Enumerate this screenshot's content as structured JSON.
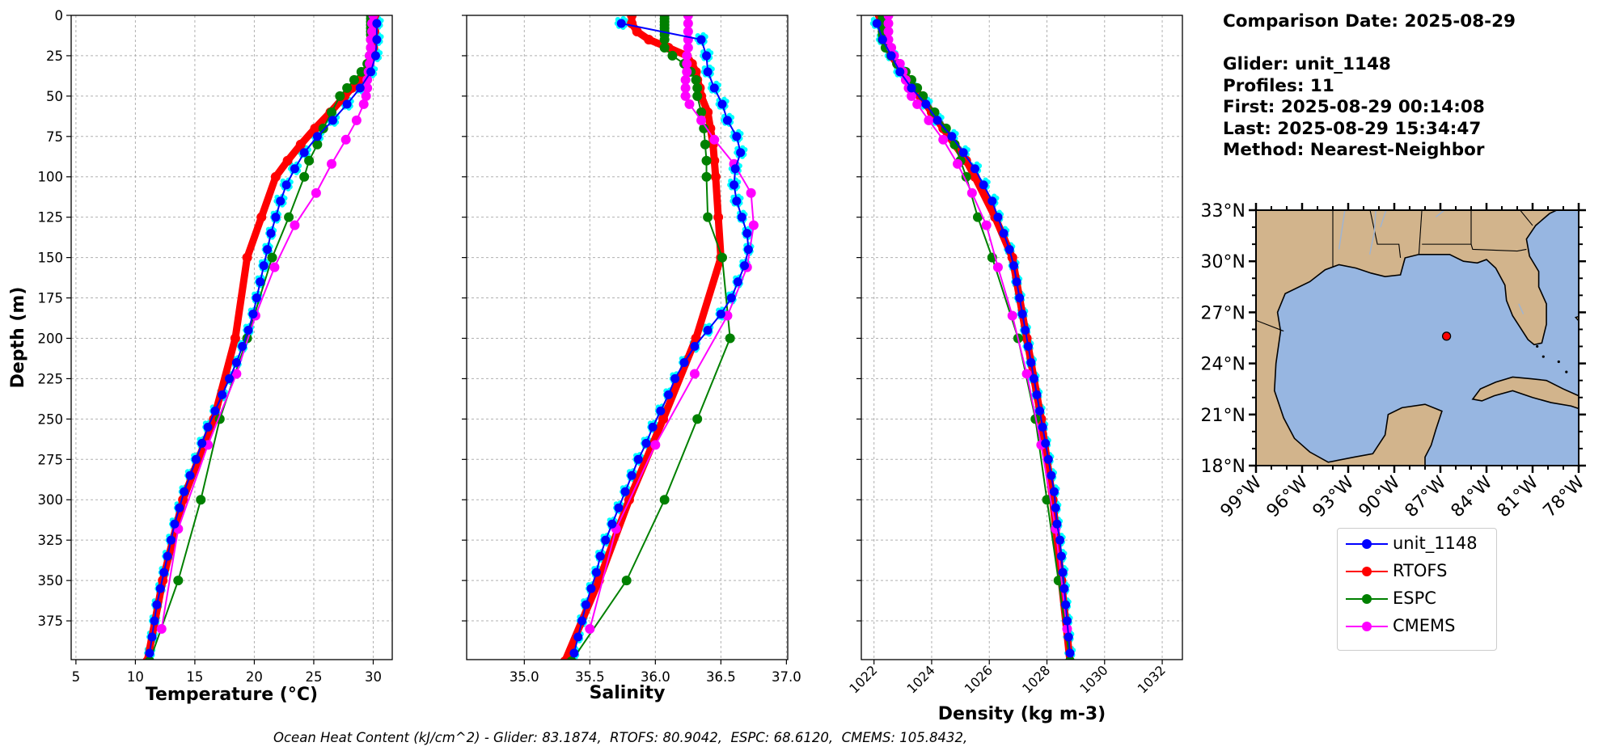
{
  "info": {
    "comparison_date": "Comparison Date: 2025-08-29",
    "glider": "Glider: unit_1148",
    "profiles": "Profiles: 11",
    "first": "First: 2025-08-29 00:14:08",
    "last": "Last: 2025-08-29 15:34:47",
    "method": "Method: Nearest-Neighbor"
  },
  "footer": "Ocean Heat Content (kJ/cm^2) - Glider: 83.1874,  RTOFS: 80.9042,  ESPC: 68.6120,  CMEMS: 105.8432,",
  "legend": [
    {
      "name": "unit_1148",
      "color": "#0000ff"
    },
    {
      "name": "RTOFS",
      "color": "#ff0000"
    },
    {
      "name": "ESPC",
      "color": "#008000"
    },
    {
      "name": "CMEMS",
      "color": "#ff00ff"
    }
  ],
  "chart_data": [
    {
      "type": "line",
      "xlabel": "Temperature (°C)",
      "ylabel": "Depth (m)",
      "xlim": [
        4.6,
        31.6
      ],
      "ylim": [
        0,
        399
      ],
      "y_inverted": true,
      "xticks": [
        5,
        10,
        15,
        20,
        25,
        30
      ],
      "yticks": [
        0,
        25,
        50,
        75,
        100,
        125,
        150,
        175,
        200,
        225,
        250,
        275,
        300,
        325,
        350,
        375
      ],
      "grid": true,
      "series": [
        {
          "name": "unit_1148",
          "color": "#0000ff",
          "y": [
            5,
            15,
            25,
            35,
            45,
            55,
            65,
            75,
            85,
            95,
            105,
            115,
            125,
            135,
            145,
            155,
            165,
            175,
            185,
            195,
            205,
            215,
            225,
            235,
            245,
            255,
            265,
            275,
            285,
            295,
            305,
            315,
            325,
            335,
            345,
            355,
            365,
            375,
            385,
            395
          ],
          "values": [
            30.3,
            30.3,
            30.2,
            29.8,
            28.9,
            27.8,
            26.6,
            25.3,
            24.2,
            23.4,
            22.7,
            22.2,
            21.8,
            21.4,
            21.1,
            20.8,
            20.5,
            20.2,
            19.9,
            19.5,
            19.0,
            18.5,
            17.9,
            17.3,
            16.7,
            16.1,
            15.6,
            15.1,
            14.6,
            14.1,
            13.7,
            13.3,
            13.0,
            12.7,
            12.4,
            12.1,
            11.8,
            11.6,
            11.4,
            11.2
          ]
        },
        {
          "name": "RTOFS",
          "color": "#ff0000",
          "y": [
            0,
            5,
            10,
            15,
            20,
            25,
            30,
            35,
            40,
            45,
            50,
            60,
            70,
            80,
            90,
            100,
            125,
            150,
            200,
            250,
            300,
            350,
            400
          ],
          "values": [
            30.1,
            30.1,
            30.1,
            30.1,
            30.0,
            29.9,
            29.7,
            29.3,
            28.8,
            28.2,
            27.6,
            26.4,
            25.1,
            23.9,
            22.8,
            21.8,
            20.6,
            19.4,
            18.4,
            16.6,
            14.0,
            12.3,
            11.0
          ]
        },
        {
          "name": "ESPC",
          "color": "#008000",
          "y": [
            0,
            2,
            4,
            6,
            8,
            10,
            12,
            15,
            20,
            25,
            30,
            35,
            40,
            45,
            50,
            60,
            70,
            80,
            90,
            100,
            125,
            150,
            200,
            250,
            300,
            350,
            400
          ],
          "values": [
            29.8,
            29.8,
            29.8,
            29.8,
            29.8,
            29.8,
            29.8,
            29.8,
            29.8,
            29.7,
            29.5,
            29.0,
            28.4,
            27.8,
            27.2,
            26.5,
            25.8,
            25.3,
            24.6,
            24.2,
            22.9,
            21.5,
            19.4,
            17.1,
            15.5,
            13.6,
            11.2
          ]
        },
        {
          "name": "CMEMS",
          "color": "#ff00ff",
          "y": [
            0,
            5,
            10,
            15,
            20,
            25,
            30,
            35,
            40,
            45,
            50,
            55,
            65,
            77,
            92,
            110,
            130,
            156,
            186,
            222,
            266,
            318,
            380
          ],
          "values": [
            30.0,
            29.9,
            29.9,
            29.8,
            29.8,
            29.7,
            29.7,
            29.6,
            29.5,
            29.5,
            29.4,
            29.2,
            28.6,
            27.7,
            26.5,
            25.2,
            23.4,
            21.7,
            20.1,
            18.5,
            16.1,
            13.6,
            12.2
          ]
        }
      ]
    },
    {
      "type": "line",
      "xlabel": "Salinity",
      "ylabel": "",
      "xlim": [
        34.56,
        37.01
      ],
      "ylim": [
        0,
        399
      ],
      "y_inverted": true,
      "xticks": [
        35.0,
        35.5,
        36.0,
        36.5,
        37.0
      ],
      "grid": true,
      "series": [
        {
          "name": "unit_1148",
          "color": "#0000ff",
          "y": [
            5,
            15,
            25,
            35,
            45,
            55,
            65,
            75,
            85,
            95,
            105,
            115,
            125,
            135,
            145,
            155,
            165,
            175,
            185,
            195,
            205,
            215,
            225,
            235,
            245,
            255,
            265,
            275,
            285,
            295,
            305,
            315,
            325,
            335,
            345,
            355,
            365,
            375,
            385,
            395
          ],
          "values": [
            35.74,
            36.35,
            36.39,
            36.4,
            36.45,
            36.51,
            36.55,
            36.62,
            36.65,
            36.61,
            36.6,
            36.62,
            36.66,
            36.7,
            36.71,
            36.68,
            36.63,
            36.58,
            36.5,
            36.4,
            36.3,
            36.22,
            36.15,
            36.1,
            36.04,
            35.98,
            35.93,
            35.87,
            35.82,
            35.77,
            35.72,
            35.67,
            35.62,
            35.58,
            35.55,
            35.51,
            35.47,
            35.44,
            35.41,
            35.38
          ]
        },
        {
          "name": "RTOFS",
          "color": "#ff0000",
          "y": [
            0,
            5,
            10,
            15,
            20,
            25,
            30,
            35,
            40,
            45,
            50,
            60,
            70,
            80,
            90,
            100,
            125,
            150,
            200,
            250,
            300,
            350,
            400
          ],
          "values": [
            35.82,
            35.82,
            35.86,
            35.95,
            36.1,
            36.24,
            36.28,
            36.31,
            36.32,
            36.34,
            36.35,
            36.4,
            36.42,
            36.44,
            36.45,
            36.46,
            36.48,
            36.5,
            36.31,
            36.06,
            35.8,
            35.57,
            35.31
          ]
        },
        {
          "name": "ESPC",
          "color": "#008000",
          "y": [
            0,
            2,
            4,
            6,
            8,
            10,
            12,
            15,
            20,
            25,
            30,
            35,
            40,
            45,
            50,
            60,
            70,
            80,
            90,
            100,
            125,
            150,
            200,
            250,
            300,
            350,
            400
          ],
          "values": [
            36.07,
            36.07,
            36.07,
            36.07,
            36.07,
            36.07,
            36.07,
            36.07,
            36.07,
            36.13,
            36.22,
            36.27,
            36.31,
            36.32,
            36.32,
            36.35,
            36.37,
            36.38,
            36.39,
            36.39,
            36.4,
            36.51,
            36.57,
            36.32,
            36.07,
            35.78,
            35.36
          ]
        },
        {
          "name": "CMEMS",
          "color": "#ff00ff",
          "y": [
            0,
            5,
            10,
            15,
            20,
            25,
            30,
            35,
            40,
            45,
            50,
            55,
            65,
            77,
            92,
            110,
            130,
            156,
            186,
            222,
            266,
            318,
            380
          ],
          "values": [
            36.25,
            36.25,
            36.25,
            36.25,
            36.25,
            36.24,
            36.24,
            36.24,
            36.23,
            36.23,
            36.23,
            36.26,
            36.35,
            36.45,
            36.6,
            36.73,
            36.75,
            36.7,
            36.55,
            36.3,
            36.0,
            35.7,
            35.5
          ]
        }
      ]
    },
    {
      "type": "line",
      "xlabel": "Density (kg m-3)",
      "ylabel": "",
      "xlim": [
        1021.56,
        1032.7
      ],
      "ylim": [
        0,
        399
      ],
      "y_inverted": true,
      "xticks": [
        1022,
        1024,
        1026,
        1028,
        1030,
        1032
      ],
      "grid": true,
      "series": [
        {
          "name": "unit_1148",
          "color": "#0000ff",
          "y": [
            5,
            15,
            25,
            35,
            45,
            55,
            65,
            75,
            85,
            95,
            105,
            115,
            125,
            135,
            145,
            155,
            165,
            175,
            185,
            195,
            205,
            215,
            225,
            235,
            245,
            255,
            265,
            275,
            285,
            295,
            305,
            315,
            325,
            335,
            345,
            355,
            365,
            375,
            385,
            395
          ],
          "values": [
            1022.1,
            1022.3,
            1022.6,
            1022.9,
            1023.3,
            1023.8,
            1024.2,
            1024.7,
            1025.1,
            1025.5,
            1025.8,
            1026.1,
            1026.3,
            1026.5,
            1026.7,
            1026.85,
            1026.95,
            1027.05,
            1027.15,
            1027.25,
            1027.35,
            1027.45,
            1027.55,
            1027.65,
            1027.75,
            1027.85,
            1027.95,
            1028.05,
            1028.15,
            1028.25,
            1028.3,
            1028.35,
            1028.45,
            1028.5,
            1028.55,
            1028.6,
            1028.65,
            1028.7,
            1028.75,
            1028.8
          ]
        },
        {
          "name": "RTOFS",
          "color": "#ff0000",
          "y": [
            0,
            5,
            10,
            15,
            20,
            25,
            30,
            35,
            40,
            45,
            50,
            60,
            70,
            80,
            90,
            100,
            125,
            150,
            200,
            250,
            300,
            350,
            400
          ],
          "values": [
            1022.2,
            1022.2,
            1022.3,
            1022.4,
            1022.5,
            1022.6,
            1022.8,
            1023.0,
            1023.2,
            1023.4,
            1023.6,
            1024.0,
            1024.4,
            1024.8,
            1025.2,
            1025.5,
            1026.2,
            1026.8,
            1027.3,
            1027.8,
            1028.2,
            1028.5,
            1028.8
          ]
        },
        {
          "name": "ESPC",
          "color": "#008000",
          "y": [
            0,
            2,
            4,
            6,
            8,
            10,
            12,
            15,
            20,
            25,
            30,
            35,
            40,
            45,
            50,
            60,
            70,
            80,
            90,
            100,
            125,
            150,
            200,
            250,
            300,
            350,
            400
          ],
          "values": [
            1022.3,
            1022.3,
            1022.3,
            1022.3,
            1022.3,
            1022.3,
            1022.3,
            1022.3,
            1022.4,
            1022.6,
            1022.8,
            1023.1,
            1023.3,
            1023.5,
            1023.7,
            1024.1,
            1024.5,
            1024.8,
            1025.0,
            1025.2,
            1025.6,
            1026.1,
            1027.0,
            1027.6,
            1028.0,
            1028.4,
            1028.8
          ]
        },
        {
          "name": "CMEMS",
          "color": "#ff00ff",
          "y": [
            0,
            5,
            10,
            15,
            20,
            25,
            30,
            35,
            40,
            45,
            50,
            55,
            65,
            77,
            92,
            110,
            130,
            156,
            186,
            222,
            266,
            318,
            380
          ],
          "values": [
            1022.5,
            1022.5,
            1022.5,
            1022.5,
            1022.6,
            1022.7,
            1022.9,
            1023.0,
            1023.1,
            1023.2,
            1023.3,
            1023.5,
            1023.9,
            1024.4,
            1024.9,
            1025.4,
            1025.9,
            1026.3,
            1026.8,
            1027.3,
            1027.8,
            1028.3,
            1028.7
          ]
        }
      ]
    }
  ],
  "map": {
    "lat_ticks": [
      "33°N",
      "30°N",
      "27°N",
      "24°N",
      "21°N",
      "18°N"
    ],
    "lon_ticks": [
      "99°W",
      "96°W",
      "93°W",
      "90°W",
      "87°W",
      "84°W",
      "81°W",
      "78°W"
    ],
    "lat_range": [
      18,
      33
    ],
    "lon_range": [
      -99,
      -78
    ],
    "glider_position": {
      "lat": 25.6,
      "lon": -86.6
    },
    "land_color": "#d2b48c",
    "ocean_color": "#97b6e1"
  }
}
